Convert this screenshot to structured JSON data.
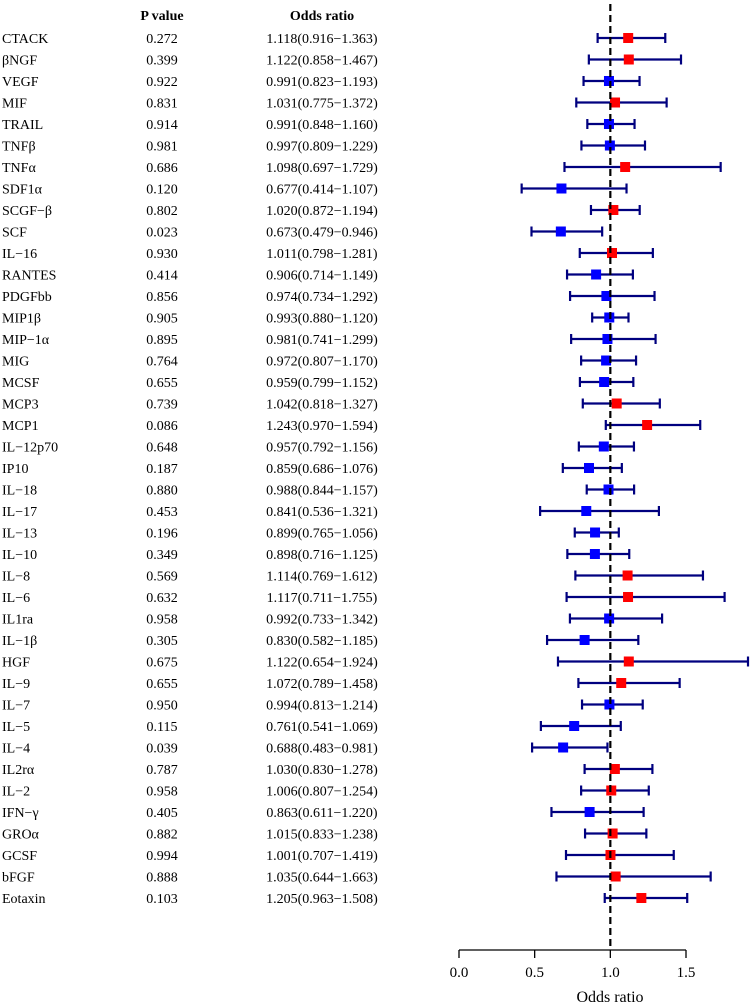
{
  "chart_data": {
    "type": "forest",
    "headers": {
      "p_value": "P value",
      "odds_ratio": "Odds ratio"
    },
    "xlabel": "Odds ratio",
    "reference_line": 1.0,
    "xlim": [
      0.0,
      1.5
    ],
    "ticks": [
      {
        "value": 0.0,
        "label": "0.0"
      },
      {
        "value": 0.5,
        "label": "0.5"
      },
      {
        "value": 1.0,
        "label": "1.0"
      },
      {
        "value": 1.5,
        "label": "1.5"
      }
    ],
    "colors": {
      "risk": "#ff0000",
      "protective": "#0000ff",
      "ci": "#00007f"
    },
    "rows": [
      {
        "name": "CTACK",
        "p": "0.272",
        "or_text": "1.118(0.916−1.363)",
        "or": 1.118,
        "lo": 0.916,
        "hi": 1.363
      },
      {
        "name": "βNGF",
        "p": "0.399",
        "or_text": "1.122(0.858−1.467)",
        "or": 1.122,
        "lo": 0.858,
        "hi": 1.467
      },
      {
        "name": "VEGF",
        "p": "0.922",
        "or_text": "0.991(0.823−1.193)",
        "or": 0.991,
        "lo": 0.823,
        "hi": 1.193
      },
      {
        "name": "MIF",
        "p": "0.831",
        "or_text": "1.031(0.775−1.372)",
        "or": 1.031,
        "lo": 0.775,
        "hi": 1.372
      },
      {
        "name": "TRAIL",
        "p": "0.914",
        "or_text": "0.991(0.848−1.160)",
        "or": 0.991,
        "lo": 0.848,
        "hi": 1.16
      },
      {
        "name": "TNFβ",
        "p": "0.981",
        "or_text": "0.997(0.809−1.229)",
        "or": 0.997,
        "lo": 0.809,
        "hi": 1.229
      },
      {
        "name": "TNFα",
        "p": "0.686",
        "or_text": "1.098(0.697−1.729)",
        "or": 1.098,
        "lo": 0.697,
        "hi": 1.729
      },
      {
        "name": "SDF1α",
        "p": "0.120",
        "or_text": "0.677(0.414−1.107)",
        "or": 0.677,
        "lo": 0.414,
        "hi": 1.107
      },
      {
        "name": "SCGF−β",
        "p": "0.802",
        "or_text": "1.020(0.872−1.194)",
        "or": 1.02,
        "lo": 0.872,
        "hi": 1.194
      },
      {
        "name": "SCF",
        "p": "0.023",
        "or_text": "0.673(0.479−0.946)",
        "or": 0.673,
        "lo": 0.479,
        "hi": 0.946
      },
      {
        "name": "IL−16",
        "p": "0.930",
        "or_text": "1.011(0.798−1.281)",
        "or": 1.011,
        "lo": 0.798,
        "hi": 1.281
      },
      {
        "name": "RANTES",
        "p": "0.414",
        "or_text": "0.906(0.714−1.149)",
        "or": 0.906,
        "lo": 0.714,
        "hi": 1.149
      },
      {
        "name": "PDGFbb",
        "p": "0.856",
        "or_text": "0.974(0.734−1.292)",
        "or": 0.974,
        "lo": 0.734,
        "hi": 1.292
      },
      {
        "name": "MIP1β",
        "p": "0.905",
        "or_text": "0.993(0.880−1.120)",
        "or": 0.993,
        "lo": 0.88,
        "hi": 1.12
      },
      {
        "name": "MIP−1α",
        "p": "0.895",
        "or_text": "0.981(0.741−1.299)",
        "or": 0.981,
        "lo": 0.741,
        "hi": 1.299
      },
      {
        "name": "MIG",
        "p": "0.764",
        "or_text": "0.972(0.807−1.170)",
        "or": 0.972,
        "lo": 0.807,
        "hi": 1.17
      },
      {
        "name": "MCSF",
        "p": "0.655",
        "or_text": "0.959(0.799−1.152)",
        "or": 0.959,
        "lo": 0.799,
        "hi": 1.152
      },
      {
        "name": "MCP3",
        "p": "0.739",
        "or_text": "1.042(0.818−1.327)",
        "or": 1.042,
        "lo": 0.818,
        "hi": 1.327
      },
      {
        "name": "MCP1",
        "p": "0.086",
        "or_text": "1.243(0.970−1.594)",
        "or": 1.243,
        "lo": 0.97,
        "hi": 1.594
      },
      {
        "name": "IL−12p70",
        "p": "0.648",
        "or_text": "0.957(0.792−1.156)",
        "or": 0.957,
        "lo": 0.792,
        "hi": 1.156
      },
      {
        "name": "IP10",
        "p": "0.187",
        "or_text": "0.859(0.686−1.076)",
        "or": 0.859,
        "lo": 0.686,
        "hi": 1.076
      },
      {
        "name": "IL−18",
        "p": "0.880",
        "or_text": "0.988(0.844−1.157)",
        "or": 0.988,
        "lo": 0.844,
        "hi": 1.157
      },
      {
        "name": "IL−17",
        "p": "0.453",
        "or_text": "0.841(0.536−1.321)",
        "or": 0.841,
        "lo": 0.536,
        "hi": 1.321
      },
      {
        "name": "IL−13",
        "p": "0.196",
        "or_text": "0.899(0.765−1.056)",
        "or": 0.899,
        "lo": 0.765,
        "hi": 1.056
      },
      {
        "name": "IL−10",
        "p": "0.349",
        "or_text": "0.898(0.716−1.125)",
        "or": 0.898,
        "lo": 0.716,
        "hi": 1.125
      },
      {
        "name": "IL−8",
        "p": "0.569",
        "or_text": "1.114(0.769−1.612)",
        "or": 1.114,
        "lo": 0.769,
        "hi": 1.612
      },
      {
        "name": "IL−6",
        "p": "0.632",
        "or_text": "1.117(0.711−1.755)",
        "or": 1.117,
        "lo": 0.711,
        "hi": 1.755
      },
      {
        "name": "IL1ra",
        "p": "0.958",
        "or_text": "0.992(0.733−1.342)",
        "or": 0.992,
        "lo": 0.733,
        "hi": 1.342
      },
      {
        "name": "IL−1β",
        "p": "0.305",
        "or_text": "0.830(0.582−1.185)",
        "or": 0.83,
        "lo": 0.582,
        "hi": 1.185
      },
      {
        "name": "HGF",
        "p": "0.675",
        "or_text": "1.122(0.654−1.924)",
        "or": 1.122,
        "lo": 0.654,
        "hi": 1.924
      },
      {
        "name": "IL−9",
        "p": "0.655",
        "or_text": "1.072(0.789−1.458)",
        "or": 1.072,
        "lo": 0.789,
        "hi": 1.458
      },
      {
        "name": "IL−7",
        "p": "0.950",
        "or_text": "0.994(0.813−1.214)",
        "or": 0.994,
        "lo": 0.813,
        "hi": 1.214
      },
      {
        "name": "IL−5",
        "p": "0.115",
        "or_text": "0.761(0.541−1.069)",
        "or": 0.761,
        "lo": 0.541,
        "hi": 1.069
      },
      {
        "name": "IL−4",
        "p": "0.039",
        "or_text": "0.688(0.483−0.981)",
        "or": 0.688,
        "lo": 0.483,
        "hi": 0.981
      },
      {
        "name": "IL2rα",
        "p": "0.787",
        "or_text": "1.030(0.830−1.278)",
        "or": 1.03,
        "lo": 0.83,
        "hi": 1.278
      },
      {
        "name": "IL−2",
        "p": "0.958",
        "or_text": "1.006(0.807−1.254)",
        "or": 1.006,
        "lo": 0.807,
        "hi": 1.254
      },
      {
        "name": "IFN−γ",
        "p": "0.405",
        "or_text": "0.863(0.611−1.220)",
        "or": 0.863,
        "lo": 0.611,
        "hi": 1.22
      },
      {
        "name": "GROα",
        "p": "0.882",
        "or_text": "1.015(0.833−1.238)",
        "or": 1.015,
        "lo": 0.833,
        "hi": 1.238
      },
      {
        "name": "GCSF",
        "p": "0.994",
        "or_text": "1.001(0.707−1.419)",
        "or": 1.001,
        "lo": 0.707,
        "hi": 1.419
      },
      {
        "name": "bFGF",
        "p": "0.888",
        "or_text": "1.035(0.644−1.663)",
        "or": 1.035,
        "lo": 0.644,
        "hi": 1.663
      },
      {
        "name": "Eotaxin",
        "p": "0.103",
        "or_text": "1.205(0.963−1.508)",
        "or": 1.205,
        "lo": 0.963,
        "hi": 1.508
      }
    ]
  }
}
